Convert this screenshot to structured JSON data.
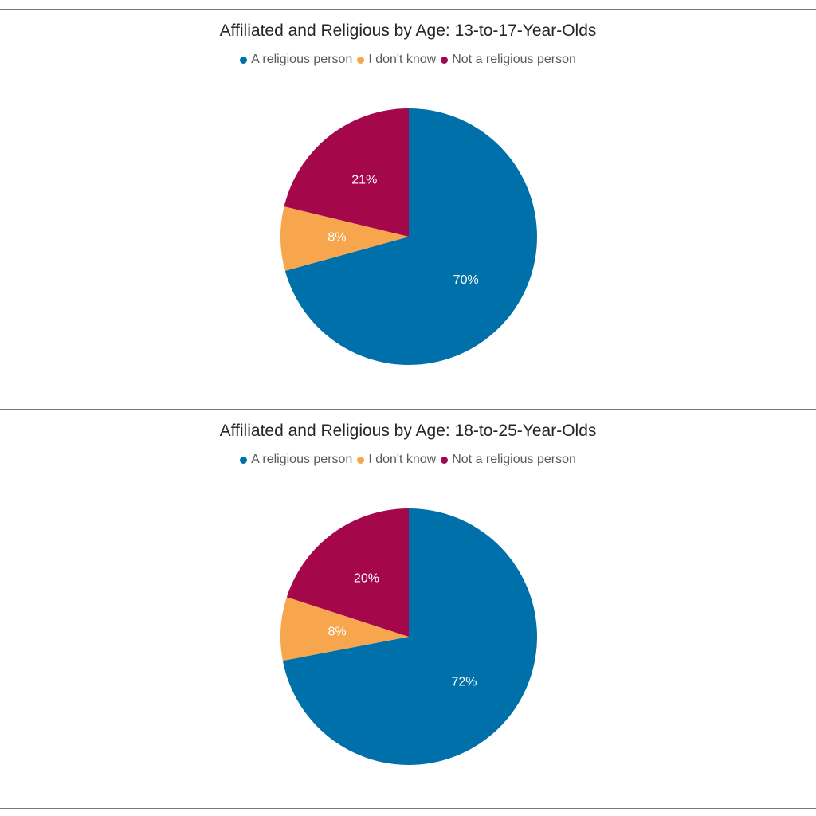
{
  "chart_data": [
    {
      "type": "pie",
      "title": "Affiliated and Religious by Age: 13-to-17-Year-Olds",
      "categories": [
        "A religious person",
        "I don't know",
        "Not a religious person"
      ],
      "values": [
        70,
        8,
        21
      ],
      "data_labels": [
        "70%",
        "8%",
        "21%"
      ],
      "colors": [
        "#0070AB",
        "#F7A64E",
        "#A4074A"
      ],
      "legend": "top"
    },
    {
      "type": "pie",
      "title": "Affiliated and Religious by Age: 18-to-25-Year-Olds",
      "categories": [
        "A religious person",
        "I don't know",
        "Not a religious person"
      ],
      "values": [
        72,
        8,
        20
      ],
      "data_labels": [
        "72%",
        "8%",
        "20%"
      ],
      "colors": [
        "#0070AB",
        "#F7A64E",
        "#A4074A"
      ],
      "legend": "top"
    }
  ]
}
